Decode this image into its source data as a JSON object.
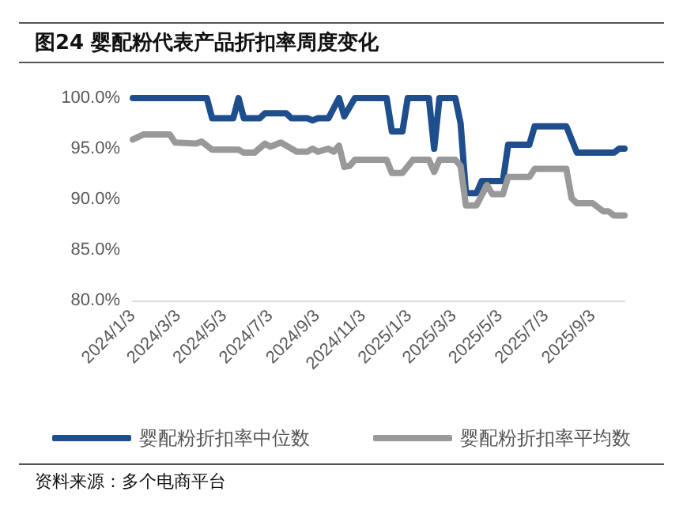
{
  "chart_data": {
    "type": "line",
    "title": "图24 婴配粉代表产品折扣率周度变化",
    "annotations": [
      "资料来源：多个电商平台"
    ],
    "legend": "bottom",
    "line_style": "solid",
    "marker": "none",
    "xlim": [
      "2024-01-03",
      "2025-10-15"
    ],
    "xticks": [
      {
        "value": "2024-01-03",
        "label": "2024/1/3"
      },
      {
        "value": "2024-03-03",
        "label": "2024/3/3"
      },
      {
        "value": "2024-05-03",
        "label": "2024/5/3"
      },
      {
        "value": "2024-07-03",
        "label": "2024/7/3"
      },
      {
        "value": "2024-09-03",
        "label": "2024/9/3"
      },
      {
        "value": "2024-11-03",
        "label": "2024/11/3"
      },
      {
        "value": "2025-01-03",
        "label": "2025/1/3"
      },
      {
        "value": "2025-03-03",
        "label": "2025/3/3"
      },
      {
        "value": "2025-05-03",
        "label": "2025/5/3"
      },
      {
        "value": "2025-07-03",
        "label": "2025/7/3"
      },
      {
        "value": "2025-09-03",
        "label": "2025/9/3"
      }
    ],
    "ylim": [
      80,
      100
    ],
    "yticks": [
      {
        "value": 80,
        "label": "80.0%"
      },
      {
        "value": 85,
        "label": "85.0%"
      },
      {
        "value": 90,
        "label": "90.0%"
      },
      {
        "value": 95,
        "label": "95.0%"
      },
      {
        "value": 100,
        "label": "100.0%"
      }
    ],
    "series": [
      {
        "name": "婴配粉折扣率中位数",
        "color": "#1f4e8c",
        "x": [
          "2024-01-03",
          "2024-04-03",
          "2024-04-10",
          "2024-04-17",
          "2024-05-15",
          "2024-05-22",
          "2024-05-29",
          "2024-06-19",
          "2024-06-26",
          "2024-07-24",
          "2024-07-31",
          "2024-08-21",
          "2024-08-28",
          "2024-09-04",
          "2024-09-18",
          "2024-10-02",
          "2024-10-09",
          "2024-10-23",
          "2024-12-04",
          "2024-12-11",
          "2024-12-25",
          "2025-01-01",
          "2025-01-29",
          "2025-02-05",
          "2025-02-12",
          "2025-03-05",
          "2025-03-12",
          "2025-03-19",
          "2025-04-02",
          "2025-04-09",
          "2025-05-07",
          "2025-05-14",
          "2025-06-11",
          "2025-06-18",
          "2025-07-30",
          "2025-08-13",
          "2025-10-01",
          "2025-10-08",
          "2025-10-15"
        ],
        "values": [
          100,
          100,
          100,
          98,
          98,
          100,
          98,
          98,
          98.5,
          98.5,
          98,
          98,
          97.8,
          98,
          98,
          100,
          98.2,
          100,
          100,
          96.7,
          96.7,
          100,
          100,
          95,
          100,
          100,
          97.5,
          90.6,
          90.6,
          91.8,
          91.8,
          95.4,
          95.4,
          97.2,
          97.2,
          94.6,
          94.6,
          95,
          95
        ]
      },
      {
        "name": "婴配粉折扣率平均数",
        "color": "#999999",
        "x": [
          "2024-01-03",
          "2024-01-17",
          "2024-02-21",
          "2024-02-28",
          "2024-03-27",
          "2024-04-03",
          "2024-04-17",
          "2024-05-22",
          "2024-05-29",
          "2024-06-12",
          "2024-06-26",
          "2024-07-03",
          "2024-07-17",
          "2024-08-07",
          "2024-08-21",
          "2024-08-28",
          "2024-09-04",
          "2024-09-18",
          "2024-09-25",
          "2024-10-02",
          "2024-10-09",
          "2024-10-16",
          "2024-10-23",
          "2024-12-04",
          "2024-12-11",
          "2024-12-25",
          "2025-01-08",
          "2025-01-29",
          "2025-02-05",
          "2025-02-12",
          "2025-03-05",
          "2025-03-12",
          "2025-03-19",
          "2025-04-02",
          "2025-04-16",
          "2025-04-23",
          "2025-05-07",
          "2025-05-14",
          "2025-06-11",
          "2025-06-18",
          "2025-07-30",
          "2025-08-06",
          "2025-08-13",
          "2025-09-03",
          "2025-09-17",
          "2025-09-24",
          "2025-10-01",
          "2025-10-15"
        ],
        "values": [
          95.9,
          96.4,
          96.4,
          95.6,
          95.5,
          95.7,
          94.9,
          94.9,
          94.6,
          94.6,
          95.5,
          95.2,
          95.6,
          94.7,
          94.7,
          95,
          94.7,
          95,
          94.7,
          95.3,
          93.2,
          93.3,
          93.9,
          93.9,
          92.6,
          92.6,
          93.9,
          93.9,
          92.7,
          93.9,
          93.9,
          93.3,
          89.4,
          89.4,
          91.4,
          90.5,
          90.5,
          92.2,
          92.2,
          93,
          93,
          90.1,
          89.6,
          89.6,
          88.8,
          88.8,
          88.4,
          88.4
        ]
      }
    ]
  }
}
